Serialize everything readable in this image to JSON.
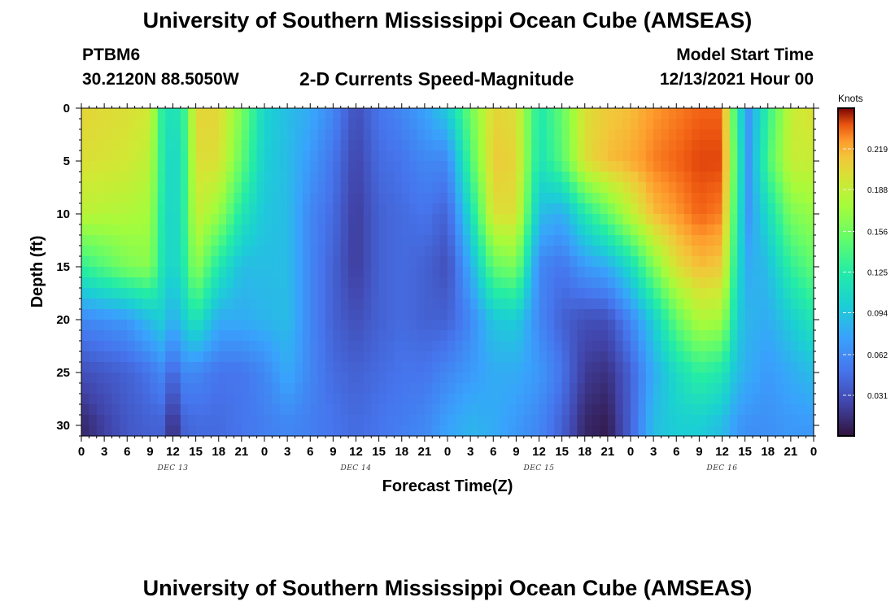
{
  "header": {
    "title": "University of Southern Mississippi Ocean Cube (AMSEAS)",
    "station": "PTBM6",
    "coords": "30.2120N  88.5050W",
    "subtitle": "2-D Currents Speed-Magnitude",
    "model_start_label": "Model Start Time",
    "model_start_value": "12/13/2021 Hour 00"
  },
  "footer": {
    "title": "University of Southern Mississippi Ocean Cube (AMSEAS)"
  },
  "chart_data": {
    "type": "heatmap",
    "xlabel": "Forecast Time(Z)",
    "ylabel": "Depth (ft)",
    "x_tick_labels": [
      "0",
      "3",
      "6",
      "9",
      "12",
      "15",
      "18",
      "21",
      "0",
      "3",
      "6",
      "9",
      "12",
      "15",
      "18",
      "21",
      "0",
      "3",
      "6",
      "9",
      "12",
      "15",
      "18",
      "21",
      "0",
      "3",
      "6",
      "9",
      "12",
      "15",
      "18",
      "21",
      "0"
    ],
    "date_labels": [
      "DEC 13",
      "DEC 14",
      "DEC 15",
      "DEC 16"
    ],
    "date_label_hours": [
      12,
      36,
      60,
      84
    ],
    "xlim_hours": [
      0,
      96
    ],
    "y_ticks": [
      0,
      5,
      10,
      15,
      20,
      25,
      30
    ],
    "ylim": [
      0,
      31
    ],
    "y_reversed": true,
    "colorbar": {
      "unit": "Knots",
      "ticks": [
        0.031,
        0.062,
        0.094,
        0.125,
        0.156,
        0.188,
        0.219
      ],
      "range": [
        0.0,
        0.25
      ],
      "colormap": "turbo"
    },
    "time_hours": [
      0,
      6,
      9,
      10.5,
      12,
      13.5,
      15,
      18,
      21,
      24,
      27,
      30,
      33,
      36,
      39,
      42,
      45,
      48,
      51,
      54,
      57,
      60,
      63,
      66,
      69,
      72,
      75,
      78,
      81,
      84,
      86,
      87.5,
      90,
      93,
      96
    ],
    "depth_ft": [
      0,
      5,
      10,
      15,
      20,
      25,
      30
    ],
    "speed_knots": [
      [
        0.205,
        0.2,
        0.195,
        0.13,
        0.11,
        0.135,
        0.205,
        0.205,
        0.16,
        0.105,
        0.09,
        0.08,
        0.06,
        0.03,
        0.05,
        0.06,
        0.075,
        0.1,
        0.155,
        0.205,
        0.2,
        0.12,
        0.15,
        0.2,
        0.21,
        0.215,
        0.225,
        0.23,
        0.235,
        0.235,
        0.12,
        0.07,
        0.13,
        0.19,
        0.2
      ],
      [
        0.2,
        0.195,
        0.185,
        0.13,
        0.1,
        0.13,
        0.2,
        0.2,
        0.15,
        0.1,
        0.09,
        0.07,
        0.05,
        0.025,
        0.045,
        0.05,
        0.06,
        0.06,
        0.14,
        0.21,
        0.205,
        0.115,
        0.145,
        0.2,
        0.215,
        0.22,
        0.23,
        0.235,
        0.24,
        0.24,
        0.13,
        0.07,
        0.14,
        0.19,
        0.19
      ],
      [
        0.185,
        0.18,
        0.175,
        0.125,
        0.1,
        0.13,
        0.19,
        0.17,
        0.12,
        0.095,
        0.09,
        0.06,
        0.045,
        0.02,
        0.04,
        0.045,
        0.05,
        0.04,
        0.11,
        0.2,
        0.2,
        0.09,
        0.08,
        0.12,
        0.15,
        0.185,
        0.215,
        0.225,
        0.235,
        0.23,
        0.12,
        0.07,
        0.11,
        0.16,
        0.17
      ],
      [
        0.13,
        0.16,
        0.165,
        0.12,
        0.1,
        0.125,
        0.17,
        0.12,
        0.09,
        0.09,
        0.09,
        0.06,
        0.04,
        0.02,
        0.04,
        0.045,
        0.04,
        0.03,
        0.08,
        0.15,
        0.16,
        0.06,
        0.05,
        0.07,
        0.08,
        0.11,
        0.16,
        0.2,
        0.215,
        0.21,
        0.11,
        0.08,
        0.09,
        0.13,
        0.15
      ],
      [
        0.06,
        0.07,
        0.09,
        0.1,
        0.08,
        0.1,
        0.12,
        0.08,
        0.08,
        0.085,
        0.09,
        0.06,
        0.04,
        0.03,
        0.04,
        0.045,
        0.04,
        0.04,
        0.06,
        0.095,
        0.1,
        0.06,
        0.04,
        0.03,
        0.03,
        0.06,
        0.1,
        0.15,
        0.18,
        0.175,
        0.1,
        0.085,
        0.08,
        0.1,
        0.12
      ],
      [
        0.03,
        0.04,
        0.05,
        0.06,
        0.04,
        0.06,
        0.06,
        0.05,
        0.05,
        0.06,
        0.08,
        0.06,
        0.045,
        0.04,
        0.045,
        0.05,
        0.05,
        0.06,
        0.07,
        0.08,
        0.08,
        0.07,
        0.05,
        0.02,
        0.015,
        0.04,
        0.08,
        0.11,
        0.13,
        0.12,
        0.09,
        0.08,
        0.07,
        0.08,
        0.09
      ],
      [
        0.01,
        0.035,
        0.04,
        0.04,
        0.01,
        0.04,
        0.045,
        0.045,
        0.05,
        0.055,
        0.06,
        0.055,
        0.05,
        0.045,
        0.05,
        0.055,
        0.06,
        0.075,
        0.085,
        0.08,
        0.07,
        0.06,
        0.04,
        0.01,
        0.005,
        0.04,
        0.09,
        0.1,
        0.1,
        0.09,
        0.07,
        0.065,
        0.065,
        0.07,
        0.07
      ]
    ]
  }
}
